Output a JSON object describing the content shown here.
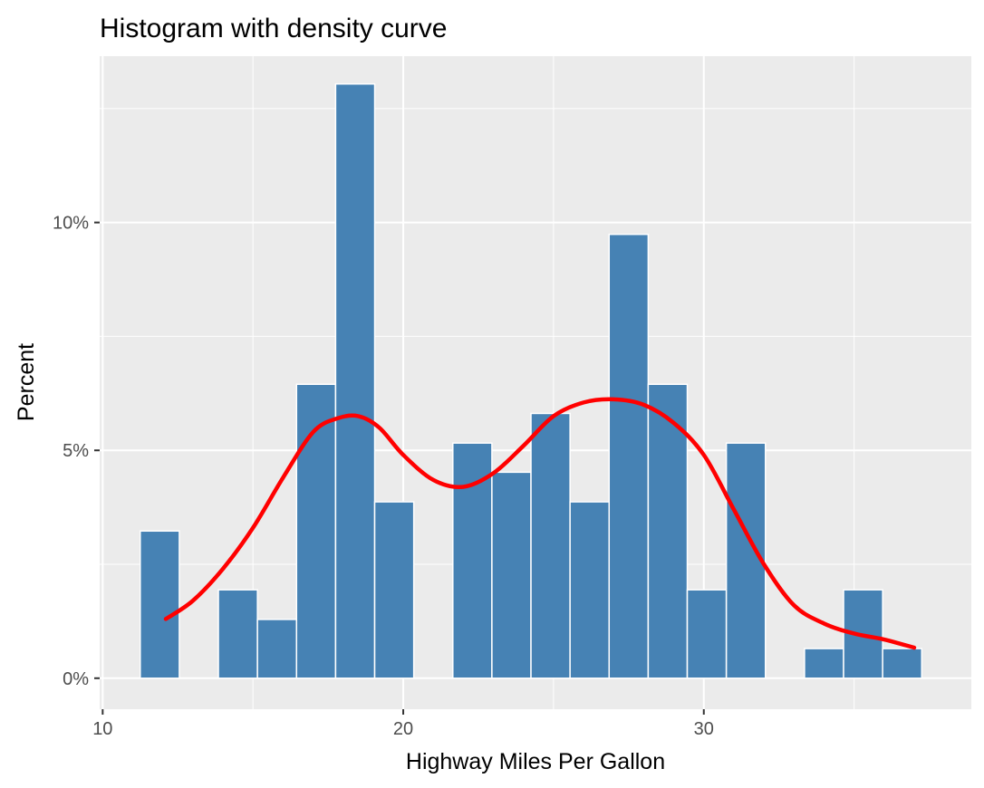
{
  "chart_data": {
    "type": "bar",
    "title": "Histogram with density curve",
    "xlabel": "Highway Miles Per Gallon",
    "ylabel": "Percent",
    "xlim": [
      9.9,
      38.9
    ],
    "ylim": [
      -0.0068,
      0.1365
    ],
    "x_ticks": [
      10,
      20,
      30
    ],
    "x_tick_labels": [
      "10",
      "20",
      "30"
    ],
    "y_ticks": [
      0,
      0.05,
      0.1
    ],
    "y_tick_labels": [
      "0%",
      "5%",
      "10%"
    ],
    "bin_width": 1.3,
    "bins": [
      {
        "start": 11.25,
        "value": 0.0323
      },
      {
        "start": 12.55,
        "value": 0.0
      },
      {
        "start": 13.85,
        "value": 0.0194
      },
      {
        "start": 15.15,
        "value": 0.0129
      },
      {
        "start": 16.45,
        "value": 0.0645
      },
      {
        "start": 17.75,
        "value": 0.1304
      },
      {
        "start": 19.05,
        "value": 0.0387
      },
      {
        "start": 20.35,
        "value": 0.0
      },
      {
        "start": 21.65,
        "value": 0.0516
      },
      {
        "start": 22.95,
        "value": 0.0452
      },
      {
        "start": 24.25,
        "value": 0.0581
      },
      {
        "start": 25.55,
        "value": 0.0387
      },
      {
        "start": 26.85,
        "value": 0.0974
      },
      {
        "start": 28.15,
        "value": 0.0645
      },
      {
        "start": 29.45,
        "value": 0.0194
      },
      {
        "start": 30.75,
        "value": 0.0516
      },
      {
        "start": 32.05,
        "value": 0.0
      },
      {
        "start": 33.35,
        "value": 0.0065
      },
      {
        "start": 34.65,
        "value": 0.0194
      },
      {
        "start": 35.95,
        "value": 0.0065
      }
    ],
    "density_curve": {
      "x": [
        12.1,
        13.0,
        14.0,
        15.0,
        16.0,
        17.0,
        17.8,
        18.5,
        19.2,
        20.0,
        21.0,
        22.0,
        23.0,
        24.0,
        25.0,
        26.0,
        27.0,
        28.0,
        29.0,
        30.0,
        31.0,
        32.0,
        33.0,
        34.0,
        35.0,
        36.0,
        37.0
      ],
      "y": [
        0.013,
        0.017,
        0.024,
        0.033,
        0.044,
        0.054,
        0.057,
        0.0575,
        0.055,
        0.049,
        0.0435,
        0.042,
        0.045,
        0.051,
        0.0575,
        0.0605,
        0.0612,
        0.06,
        0.056,
        0.049,
        0.037,
        0.025,
        0.016,
        0.012,
        0.0098,
        0.0085,
        0.0067
      ]
    },
    "colors": {
      "bar_fill": "#4682B4",
      "bar_outline": "#ffffff",
      "curve": "#FF0000",
      "panel_background": "#EBEBEB",
      "gridline": "#ffffff",
      "text": "#000000",
      "tick_text": "#4d4d4d"
    },
    "grid": true,
    "legend": "none"
  }
}
